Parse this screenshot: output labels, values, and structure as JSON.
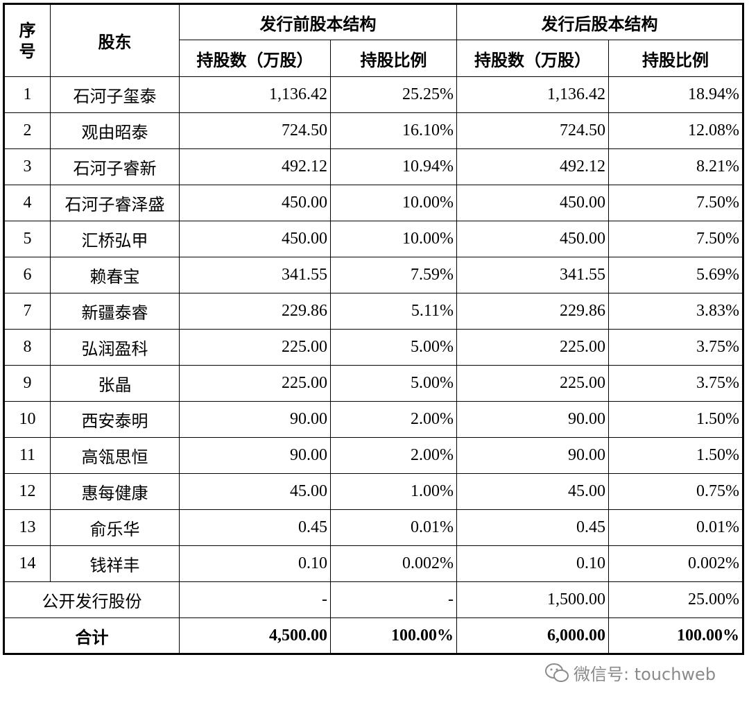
{
  "table": {
    "header": {
      "index": "序号",
      "holder": "股东",
      "before": "发行前股本结构",
      "after": "发行后股本结构",
      "columns": [
        "持股数（万股）",
        "持股比例",
        "持股数（万股）",
        "持股比例"
      ]
    },
    "rows": [
      [
        "1",
        "石河子玺泰",
        "1,136.42",
        "25.25%",
        "1,136.42",
        "18.94%"
      ],
      [
        "2",
        "观由昭泰",
        "724.50",
        "16.10%",
        "724.50",
        "12.08%"
      ],
      [
        "3",
        "石河子睿新",
        "492.12",
        "10.94%",
        "492.12",
        "8.21%"
      ],
      [
        "4",
        "石河子睿泽盛",
        "450.00",
        "10.00%",
        "450.00",
        "7.50%"
      ],
      [
        "5",
        "汇桥弘甲",
        "450.00",
        "10.00%",
        "450.00",
        "7.50%"
      ],
      [
        "6",
        "赖春宝",
        "341.55",
        "7.59%",
        "341.55",
        "5.69%"
      ],
      [
        "7",
        "新疆泰睿",
        "229.86",
        "5.11%",
        "229.86",
        "3.83%"
      ],
      [
        "8",
        "弘润盈科",
        "225.00",
        "5.00%",
        "225.00",
        "3.75%"
      ],
      [
        "9",
        "张晶",
        "225.00",
        "5.00%",
        "225.00",
        "3.75%"
      ],
      [
        "10",
        "西安泰明",
        "90.00",
        "2.00%",
        "90.00",
        "1.50%"
      ],
      [
        "11",
        "高瓴思恒",
        "90.00",
        "2.00%",
        "90.00",
        "1.50%"
      ],
      [
        "12",
        "惠每健康",
        "45.00",
        "1.00%",
        "45.00",
        "0.75%"
      ],
      [
        "13",
        "俞乐华",
        "0.45",
        "0.01%",
        "0.45",
        "0.01%"
      ],
      [
        "14",
        "钱祥丰",
        "0.10",
        "0.002%",
        "0.10",
        "0.002%"
      ]
    ],
    "public_offering": [
      "公开发行股份",
      "-",
      "-",
      "1,500.00",
      "25.00%"
    ],
    "total": [
      "合计",
      "4,500.00",
      "100.00%",
      "6,000.00",
      "100.00%"
    ]
  },
  "watermark": "微信号: touchweb"
}
